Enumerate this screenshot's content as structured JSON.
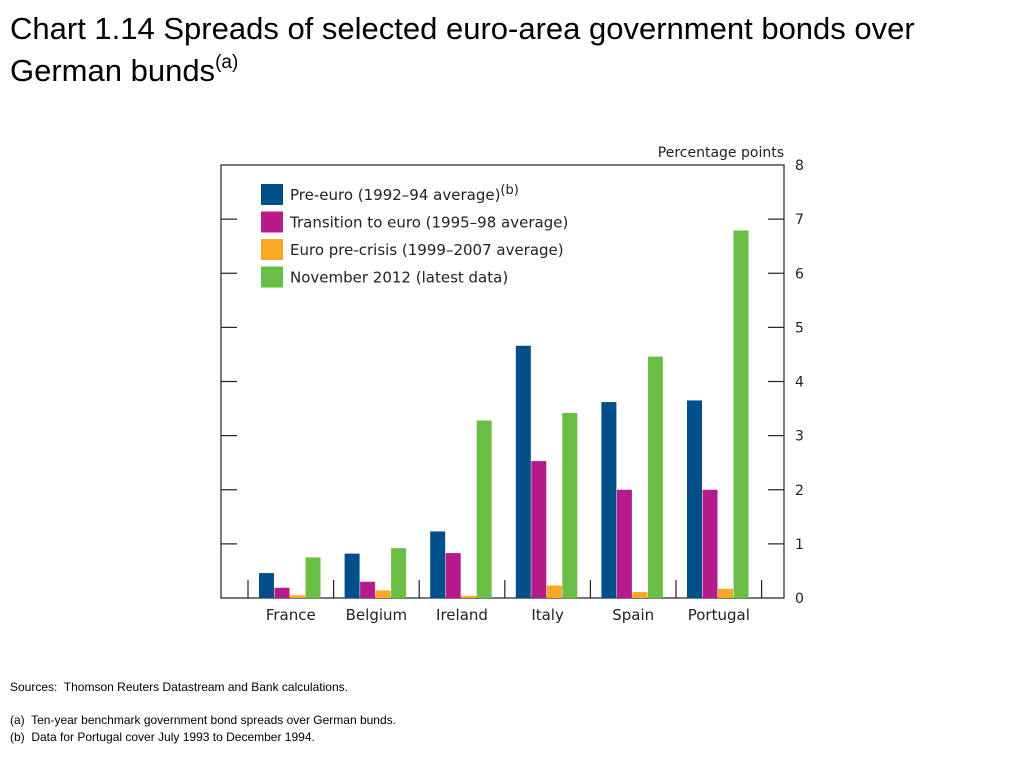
{
  "title": {
    "main": "Chart 1.14  Spreads of selected euro-area government bonds over German bunds",
    "ref": "(a)"
  },
  "chart_data": {
    "type": "bar",
    "title": "Spreads of selected euro-area government bonds over German bunds",
    "ylabel": "Percentage points",
    "ylim": [
      0,
      8
    ],
    "yticks": [
      "0",
      "1",
      "2",
      "3",
      "4",
      "5",
      "6",
      "7",
      "8"
    ],
    "y_axis_side": "right",
    "grid": false,
    "legend_position": "top-left",
    "categories": [
      "France",
      "Belgium",
      "Ireland",
      "Italy",
      "Spain",
      "Portugal"
    ],
    "series": [
      {
        "name": "Pre-euro (1992–94 average)",
        "ref": "(b)",
        "color": "#004f8b",
        "values": [
          0.46,
          0.82,
          1.23,
          4.66,
          3.62,
          3.65
        ]
      },
      {
        "name": "Transition to euro (1995–98 average)",
        "ref": "",
        "color": "#b51b8a",
        "values": [
          0.19,
          0.3,
          0.83,
          2.53,
          2.0,
          2.0
        ]
      },
      {
        "name": "Euro pre-crisis (1999–2007 average)",
        "ref": "",
        "color": "#f9a825",
        "values": [
          0.05,
          0.14,
          0.04,
          0.23,
          0.11,
          0.17
        ]
      },
      {
        "name": "November 2012 (latest data)",
        "ref": "",
        "color": "#6abd45",
        "values": [
          0.75,
          0.92,
          3.28,
          3.42,
          4.46,
          6.79
        ]
      }
    ]
  },
  "footnotes": {
    "sources": "Sources:  Thomson Reuters Datastream and Bank calculations.",
    "note_a": "(a)  Ten-year benchmark government bond spreads over German bunds.",
    "note_b": "(b)  Data for Portugal cover July 1993 to December 1994."
  }
}
